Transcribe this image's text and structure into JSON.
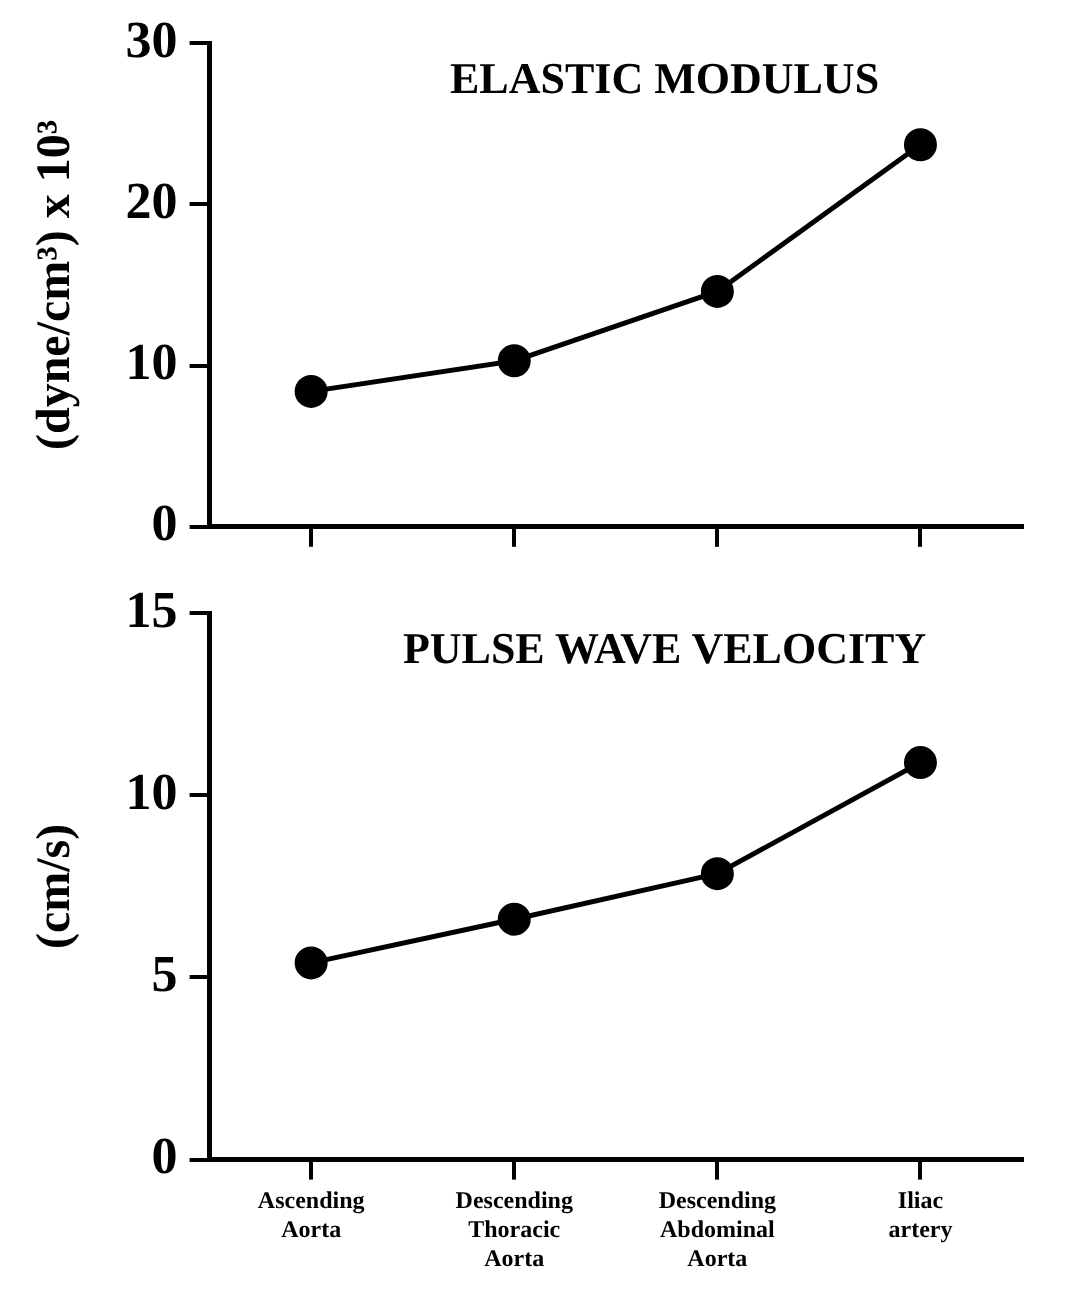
{
  "chart_data": [
    {
      "type": "line",
      "title": "ELASTIC MODULUS",
      "ylabel": "(dyne/cm³) x 10³",
      "categories": [
        null,
        null,
        null,
        null
      ],
      "values": [
        8.4,
        10.3,
        14.6,
        23.7
      ],
      "color": "#000000",
      "ylim": [
        0,
        30
      ],
      "yticks": [
        0,
        10,
        20,
        30
      ],
      "marker": "circle",
      "line_style": "solid",
      "legend": false,
      "grid": false
    },
    {
      "type": "line",
      "title": "PULSE WAVE VELOCITY",
      "ylabel": "(cm/s)",
      "categories": [
        "Ascending Aorta",
        "Descending Thoracic Aorta",
        "Descending Abdominal Aorta",
        "Iliac artery"
      ],
      "values": [
        5.4,
        6.6,
        7.85,
        10.9
      ],
      "color": "#000000",
      "ylim": [
        0,
        15
      ],
      "yticks": [
        0,
        5,
        10,
        15
      ],
      "marker": "circle",
      "line_style": "solid",
      "legend": false,
      "grid": false
    }
  ]
}
